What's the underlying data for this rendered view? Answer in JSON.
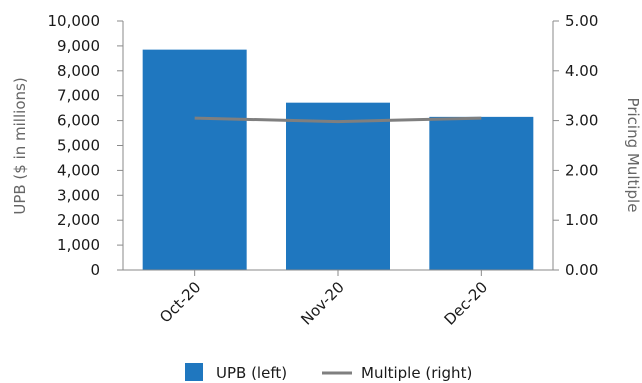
{
  "chart_data": {
    "type": "bar",
    "categories": [
      "Oct-20",
      "Nov-20",
      "Dec-20"
    ],
    "series": [
      {
        "name": "UPB (left)",
        "type": "bar",
        "axis": "left",
        "values": [
          8850,
          6720,
          6150
        ],
        "color": "#1f77bf"
      },
      {
        "name": "Multiple (right)",
        "type": "line",
        "axis": "right",
        "values": [
          3.05,
          2.98,
          3.05
        ],
        "color": "#7f7f7f"
      }
    ],
    "ylabel_left": "UPB ($ in millions)",
    "ylabel_right": "Pricing Multiple",
    "ylim_left": [
      0,
      10000
    ],
    "ylim_right": [
      0,
      5
    ],
    "yticks_left": [
      "0",
      "1,000",
      "2,000",
      "3,000",
      "4,000",
      "5,000",
      "6,000",
      "7,000",
      "8,000",
      "9,000",
      "10,000"
    ],
    "yticks_right": [
      "0.00",
      "1.00",
      "2.00",
      "3.00",
      "4.00",
      "5.00"
    ],
    "grid": false,
    "legend_position": "bottom"
  }
}
